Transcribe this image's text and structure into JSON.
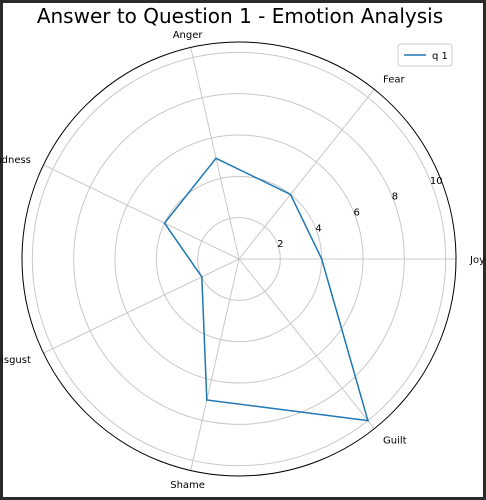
{
  "chart_data": {
    "type": "radar",
    "title": "Answer to Question 1 - Emotion Analysis",
    "categories": [
      "Joy",
      "Fear",
      "Anger",
      "Sadness",
      "Disgust",
      "Shame",
      "Guilt"
    ],
    "radial_ticks": [
      "2",
      "4",
      "6",
      "8",
      "10"
    ],
    "rlim": [
      0,
      10.5
    ],
    "grid": true,
    "legend_position": "top-right",
    "series": [
      {
        "name": "q 1",
        "color": "#1f77b4",
        "values": [
          4,
          4,
          5,
          4,
          2,
          7,
          10
        ]
      }
    ]
  }
}
